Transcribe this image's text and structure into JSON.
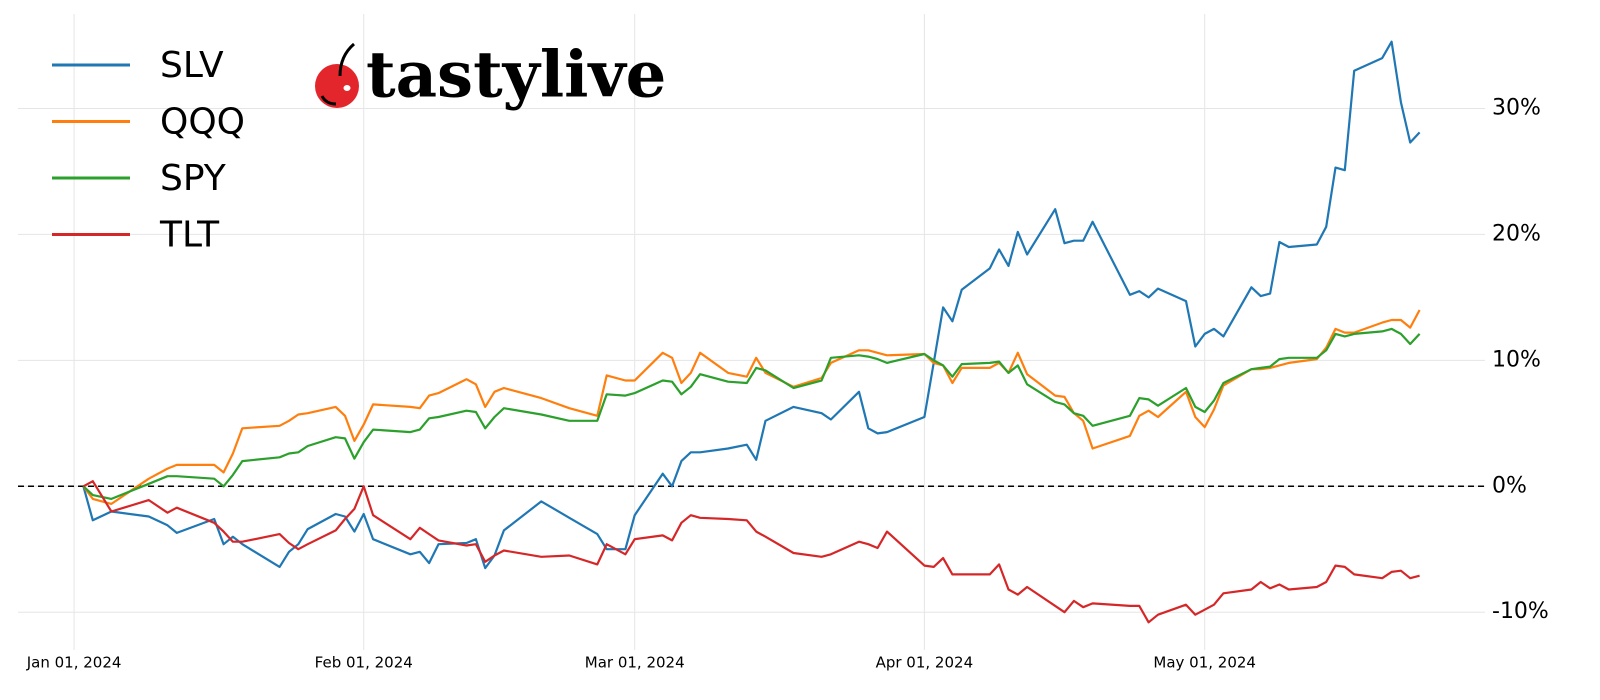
{
  "chart_data": {
    "type": "line",
    "logo": "tastylive",
    "x": [
      "2024-01-02",
      "2024-01-03",
      "2024-01-05",
      "2024-01-09",
      "2024-01-11",
      "2024-01-12",
      "2024-01-16",
      "2024-01-17",
      "2024-01-18",
      "2024-01-19",
      "2024-01-23",
      "2024-01-24",
      "2024-01-25",
      "2024-01-26",
      "2024-01-29",
      "2024-01-30",
      "2024-01-31",
      "2024-02-01",
      "2024-02-02",
      "2024-02-06",
      "2024-02-07",
      "2024-02-08",
      "2024-02-09",
      "2024-02-12",
      "2024-02-13",
      "2024-02-14",
      "2024-02-15",
      "2024-02-16",
      "2024-02-20",
      "2024-02-23",
      "2024-02-26",
      "2024-02-27",
      "2024-02-29",
      "2024-03-01",
      "2024-03-04",
      "2024-03-05",
      "2024-03-06",
      "2024-03-07",
      "2024-03-08",
      "2024-03-11",
      "2024-03-13",
      "2024-03-14",
      "2024-03-15",
      "2024-03-18",
      "2024-03-21",
      "2024-03-22",
      "2024-03-25",
      "2024-03-26",
      "2024-03-27",
      "2024-03-28",
      "2024-04-01",
      "2024-04-02",
      "2024-04-03",
      "2024-04-04",
      "2024-04-05",
      "2024-04-08",
      "2024-04-09",
      "2024-04-10",
      "2024-04-11",
      "2024-04-12",
      "2024-04-15",
      "2024-04-16",
      "2024-04-17",
      "2024-04-18",
      "2024-04-19",
      "2024-04-23",
      "2024-04-24",
      "2024-04-25",
      "2024-04-26",
      "2024-04-29",
      "2024-04-30",
      "2024-05-01",
      "2024-05-02",
      "2024-05-03",
      "2024-05-06",
      "2024-05-07",
      "2024-05-08",
      "2024-05-09",
      "2024-05-10",
      "2024-05-13",
      "2024-05-14",
      "2024-05-15",
      "2024-05-16",
      "2024-05-17",
      "2024-05-20",
      "2024-05-21",
      "2024-05-22",
      "2024-05-23",
      "2024-05-24"
    ],
    "series": [
      {
        "name": "SLV",
        "color": "#1f77b4",
        "values": [
          0,
          -2.7,
          -2.0,
          -2.4,
          -3.1,
          -3.7,
          -2.6,
          -4.6,
          -4.0,
          -4.6,
          -6.4,
          -5.2,
          -4.6,
          -3.4,
          -2.2,
          -2.4,
          -3.6,
          -2.2,
          -4.2,
          -5.4,
          -5.2,
          -6.1,
          -4.6,
          -4.5,
          -4.2,
          -6.5,
          -5.5,
          -3.5,
          -1.2,
          -2.5,
          -3.8,
          -5.0,
          -5.0,
          -2.3,
          1.0,
          0.0,
          2.0,
          2.7,
          2.7,
          3.0,
          3.3,
          2.1,
          5.2,
          6.3,
          5.8,
          5.3,
          7.5,
          4.6,
          4.2,
          4.3,
          5.5,
          9.8,
          14.2,
          13.1,
          15.6,
          17.3,
          18.8,
          17.5,
          20.2,
          18.4,
          22.0,
          19.3,
          19.5,
          19.5,
          21.0,
          15.2,
          15.5,
          15.0,
          15.7,
          14.7,
          11.1,
          12.1,
          12.5,
          11.9,
          15.8,
          15.1,
          15.3,
          19.4,
          19.0,
          19.2,
          20.6,
          25.3,
          25.1,
          33.0,
          34.0,
          35.3,
          30.5,
          27.3,
          28.1
        ]
      },
      {
        "name": "QQQ",
        "color": "#ff7f0e",
        "values": [
          0,
          -1.0,
          -1.4,
          0.6,
          1.4,
          1.7,
          1.7,
          1.1,
          2.6,
          4.6,
          4.8,
          5.2,
          5.7,
          5.8,
          6.3,
          5.6,
          3.6,
          4.9,
          6.5,
          6.3,
          6.2,
          7.2,
          7.4,
          8.5,
          8.1,
          6.3,
          7.5,
          7.8,
          7.0,
          6.2,
          5.6,
          8.8,
          8.4,
          8.4,
          10.6,
          10.2,
          8.2,
          9.0,
          10.6,
          9.0,
          8.7,
          10.2,
          9.0,
          7.9,
          8.6,
          9.8,
          10.8,
          10.8,
          10.6,
          10.4,
          10.5,
          9.8,
          9.6,
          8.2,
          9.4,
          9.4,
          9.8,
          9.0,
          10.6,
          8.9,
          7.2,
          7.1,
          5.8,
          5.2,
          3.0,
          4.0,
          5.6,
          6.0,
          5.5,
          7.5,
          5.5,
          4.7,
          6.1,
          8.0,
          9.3,
          9.3,
          9.4,
          9.6,
          9.8,
          10.1,
          11.0,
          12.5,
          12.2,
          12.2,
          13.0,
          13.2,
          13.2,
          12.6,
          14.0
        ]
      },
      {
        "name": "SPY",
        "color": "#2ca02c",
        "values": [
          0,
          -0.7,
          -1.0,
          0.2,
          0.8,
          0.8,
          0.6,
          0.0,
          0.9,
          2.0,
          2.3,
          2.6,
          2.7,
          3.2,
          3.9,
          3.8,
          2.2,
          3.5,
          4.5,
          4.3,
          4.5,
          5.4,
          5.5,
          6.0,
          5.9,
          4.6,
          5.5,
          6.2,
          5.7,
          5.2,
          5.2,
          7.3,
          7.2,
          7.4,
          8.4,
          8.3,
          7.3,
          7.9,
          8.9,
          8.3,
          8.2,
          9.4,
          9.2,
          7.8,
          8.4,
          10.2,
          10.4,
          10.3,
          10.1,
          9.8,
          10.5,
          10.0,
          9.6,
          8.7,
          9.7,
          9.8,
          9.9,
          9.0,
          9.6,
          8.1,
          6.7,
          6.5,
          5.8,
          5.6,
          4.8,
          5.6,
          7.0,
          6.9,
          6.4,
          7.8,
          6.3,
          5.9,
          6.8,
          8.2,
          9.3,
          9.4,
          9.5,
          10.1,
          10.2,
          10.2,
          10.8,
          12.1,
          11.9,
          12.1,
          12.3,
          12.5,
          12.1,
          11.3,
          12.1
        ]
      },
      {
        "name": "TLT",
        "color": "#d62728",
        "values": [
          0,
          0.4,
          -2.0,
          -1.1,
          -2.1,
          -1.7,
          -2.9,
          -3.6,
          -4.4,
          -4.4,
          -3.8,
          -4.5,
          -5.0,
          -4.6,
          -3.5,
          -2.6,
          -1.8,
          0.0,
          -2.3,
          -4.2,
          -3.3,
          -3.8,
          -4.3,
          -4.7,
          -4.6,
          -6.0,
          -5.5,
          -5.1,
          -5.6,
          -5.5,
          -6.2,
          -4.6,
          -5.4,
          -4.2,
          -3.9,
          -4.3,
          -2.9,
          -2.3,
          -2.5,
          -2.6,
          -2.7,
          -3.6,
          -4.0,
          -5.3,
          -5.6,
          -5.4,
          -4.4,
          -4.6,
          -4.9,
          -3.6,
          -6.3,
          -6.4,
          -5.7,
          -7.0,
          -7.0,
          -7.0,
          -6.2,
          -8.2,
          -8.6,
          -8.0,
          -9.5,
          -10.0,
          -9.1,
          -9.6,
          -9.3,
          -9.5,
          -9.5,
          -10.8,
          -10.2,
          -9.4,
          -10.2,
          -9.8,
          -9.4,
          -8.5,
          -8.2,
          -7.6,
          -8.1,
          -7.8,
          -8.2,
          -8.0,
          -7.6,
          -6.3,
          -6.4,
          -7.0,
          -7.3,
          -6.8,
          -6.7,
          -7.3,
          -7.1
        ]
      }
    ],
    "xlim": [
      "2023-12-26",
      "2024-05-31"
    ],
    "xticks": [
      {
        "value": "2024-01-01",
        "label": "Jan 01, 2024"
      },
      {
        "value": "2024-02-01",
        "label": "Feb 01, 2024"
      },
      {
        "value": "2024-03-01",
        "label": "Mar 01, 2024"
      },
      {
        "value": "2024-04-01",
        "label": "Apr 01, 2024"
      },
      {
        "value": "2024-05-01",
        "label": "May 01, 2024"
      }
    ],
    "ylim": [
      -13,
      37.5
    ],
    "yticks": [
      {
        "value": -10,
        "label": "-10%"
      },
      {
        "value": 0,
        "label": "0%"
      },
      {
        "value": 10,
        "label": "10%"
      },
      {
        "value": 20,
        "label": "20%"
      },
      {
        "value": 30,
        "label": "30%"
      }
    ],
    "y_axis_side": "right",
    "reference_line": 0,
    "grid": true,
    "legend": "upper left"
  }
}
